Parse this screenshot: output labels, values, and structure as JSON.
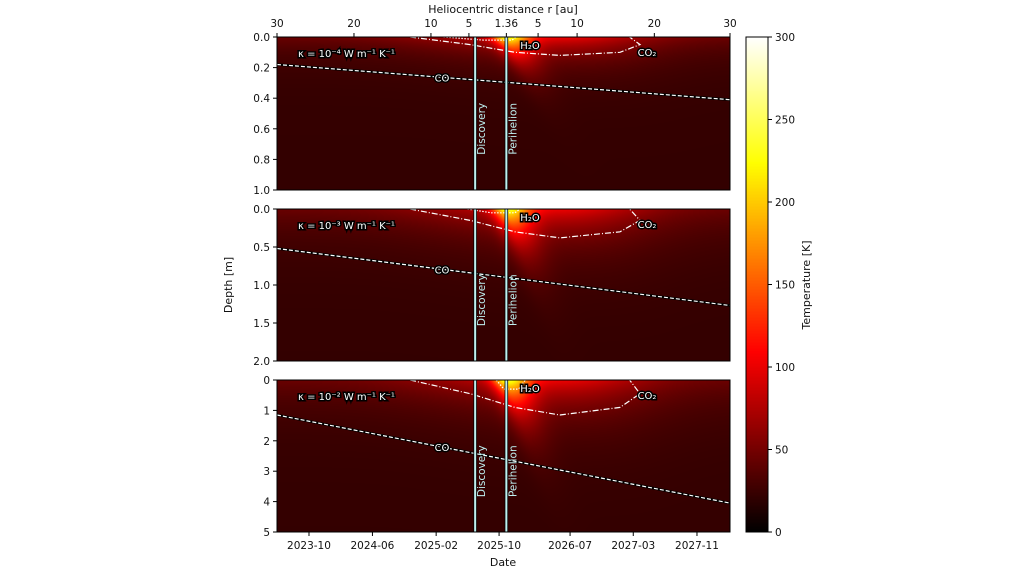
{
  "chart_data": {
    "type": "heatmap",
    "xlabel": "Date",
    "ylabel": "Depth [m]",
    "top_axis": {
      "label": "Heliocentric distance r [au]",
      "ticks": [
        {
          "label": "30",
          "date": "2023-05-31"
        },
        {
          "label": "20",
          "date": "2024-03-22"
        },
        {
          "label": "10",
          "date": "2025-01-12"
        },
        {
          "label": "5",
          "date": "2025-06-07"
        },
        {
          "label": "1.36",
          "date": "2025-10-29"
        },
        {
          "label": "5",
          "date": "2026-02-28"
        },
        {
          "label": "10",
          "date": "2026-07-28"
        },
        {
          "label": "20",
          "date": "2027-05-21"
        },
        {
          "label": "30",
          "date": "2028-03-07"
        }
      ]
    },
    "xlim": [
      "2023-05-31",
      "2028-03-07"
    ],
    "xticks": [
      "2023-10",
      "2024-06",
      "2025-02",
      "2025-10",
      "2026-07",
      "2027-03",
      "2027-11"
    ],
    "events": [
      {
        "label": "Discovery",
        "date": "2025-07-01"
      },
      {
        "label": "Perihelion",
        "date": "2025-10-29"
      }
    ],
    "colorbar": {
      "label": "Temperature [K]",
      "colormap": "hot",
      "range": [
        0,
        300
      ],
      "ticks": [
        "0",
        "50",
        "100",
        "150",
        "200",
        "250",
        "300"
      ]
    },
    "contour_labels": {
      "h2o": "H₂O",
      "co2": "CO₂",
      "co": "CO"
    },
    "panels": [
      {
        "kappa": "κ = 10⁻⁴ W m⁻¹ K⁻¹",
        "ylim": [
          1.0,
          0.0
        ],
        "yticks": [
          "0.0",
          "0.2",
          "0.4",
          "0.6",
          "0.8",
          "1.0"
        ],
        "ytick_values": [
          0,
          0.2,
          0.4,
          0.6,
          0.8,
          1.0
        ],
        "co_line": [
          [
            "2023-05-31",
            0.18
          ],
          [
            "2028-03-07",
            0.41
          ]
        ],
        "co2_contour": [
          [
            "2024-10-24",
            0
          ],
          [
            "2025-06-12",
            0.05
          ],
          [
            "2025-12-01",
            0.1
          ],
          [
            "2026-05-23",
            0.12
          ],
          [
            "2027-01-09",
            0.1
          ],
          [
            "2027-03-27",
            0.05
          ],
          [
            "2027-02-15",
            0
          ]
        ],
        "h2o_contour": [
          [
            "2025-03-01",
            0
          ],
          [
            "2025-08-01",
            0.02
          ],
          [
            "2025-11-20",
            0.02
          ],
          [
            "2025-12-05",
            0
          ]
        ]
      },
      {
        "kappa": "κ = 10⁻³ W m⁻¹ K⁻¹",
        "ylim": [
          2.0,
          0.0
        ],
        "yticks": [
          "0.0",
          "0.5",
          "1.0",
          "1.5",
          "2.0"
        ],
        "ytick_values": [
          0,
          0.5,
          1.0,
          1.5,
          2.0
        ],
        "co_line": [
          [
            "2023-05-31",
            0.52
          ],
          [
            "2028-03-07",
            1.27
          ]
        ],
        "co2_contour": [
          [
            "2024-10-24",
            0
          ],
          [
            "2025-06-12",
            0.15
          ],
          [
            "2025-12-01",
            0.3
          ],
          [
            "2026-05-23",
            0.38
          ],
          [
            "2027-01-09",
            0.3
          ],
          [
            "2027-03-27",
            0.15
          ],
          [
            "2027-02-15",
            0
          ]
        ],
        "h2o_contour": [
          [
            "2025-06-01",
            0
          ],
          [
            "2025-09-01",
            0.05
          ],
          [
            "2025-12-01",
            0.05
          ],
          [
            "2025-12-20",
            0
          ]
        ]
      },
      {
        "kappa": "κ = 10⁻² W m⁻¹ K⁻¹",
        "ylim": [
          5,
          0
        ],
        "yticks": [
          "0",
          "1",
          "2",
          "3",
          "4",
          "5"
        ],
        "ytick_values": [
          0,
          1,
          2,
          3,
          4,
          5
        ],
        "co_line": [
          [
            "2023-05-31",
            1.15
          ],
          [
            "2028-03-07",
            4.05
          ]
        ],
        "co2_contour": [
          [
            "2024-10-24",
            0
          ],
          [
            "2025-06-12",
            0.45
          ],
          [
            "2025-12-01",
            0.9
          ],
          [
            "2026-05-23",
            1.15
          ],
          [
            "2027-01-09",
            0.9
          ],
          [
            "2027-03-27",
            0.45
          ],
          [
            "2027-02-15",
            0
          ]
        ],
        "h2o_contour": [
          [
            "2025-09-20",
            0
          ],
          [
            "2025-10-20",
            0.3
          ],
          [
            "2025-12-15",
            0.3
          ],
          [
            "2026-01-10",
            0
          ]
        ]
      }
    ]
  }
}
